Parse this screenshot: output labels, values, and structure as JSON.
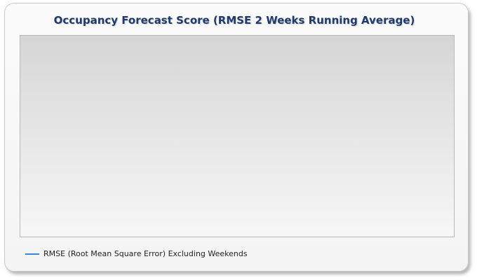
{
  "chart_data": {
    "type": "line",
    "title": "Occupancy Forecast Score (RMSE 2 Weeks Running Average)",
    "xlabel": "",
    "ylabel": "",
    "grid": false,
    "legend_position": "bottom-left",
    "x": [],
    "series": [
      {
        "name": "RMSE (Root Mean Square Error) Excluding Weekends",
        "color": "#3a85d6",
        "values": []
      }
    ]
  }
}
